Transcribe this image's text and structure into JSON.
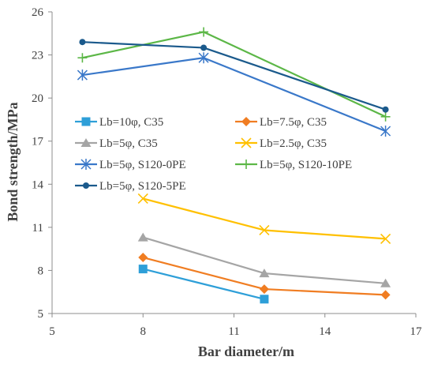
{
  "chart_data": {
    "type": "line",
    "xlabel": "Bar diameter/m",
    "ylabel": "Bond strength/MPa",
    "xlim": [
      5,
      17
    ],
    "ylim": [
      5,
      26
    ],
    "xticks": [
      5,
      8,
      11,
      14,
      17
    ],
    "yticks": [
      5,
      8,
      11,
      14,
      17,
      20,
      23,
      26
    ],
    "grid": false,
    "legend_position": "center-left",
    "series": [
      {
        "name": "Lb=10φ, C35",
        "color": "#2e9fd8",
        "marker": "square",
        "x": [
          8,
          12
        ],
        "y": [
          8.1,
          6.0
        ]
      },
      {
        "name": "Lb=7.5φ, C35",
        "color": "#f07d22",
        "marker": "diamond",
        "x": [
          8,
          12,
          16
        ],
        "y": [
          8.9,
          6.7,
          6.3
        ]
      },
      {
        "name": "Lb=5φ, C35",
        "color": "#a5a5a5",
        "marker": "triangle",
        "x": [
          8,
          12,
          16
        ],
        "y": [
          10.3,
          7.8,
          7.1
        ]
      },
      {
        "name": "Lb=2.5φ, C35",
        "color": "#ffc000",
        "marker": "x",
        "x": [
          8,
          12,
          16
        ],
        "y": [
          13.0,
          10.8,
          10.2
        ]
      },
      {
        "name": "Lb=5φ, S120-0PE",
        "color": "#3a78c9",
        "marker": "star",
        "x": [
          6,
          10,
          16
        ],
        "y": [
          21.6,
          22.8,
          17.7
        ]
      },
      {
        "name": "Lb=5φ, S120-10PE",
        "color": "#5cb747",
        "marker": "plus",
        "x": [
          6,
          10,
          16
        ],
        "y": [
          22.8,
          24.6,
          18.7
        ]
      },
      {
        "name": "Lb=5φ, S120-5PE",
        "color": "#1b5a8c",
        "marker": "circle",
        "x": [
          6,
          10,
          16
        ],
        "y": [
          23.9,
          23.5,
          19.2
        ]
      }
    ]
  }
}
